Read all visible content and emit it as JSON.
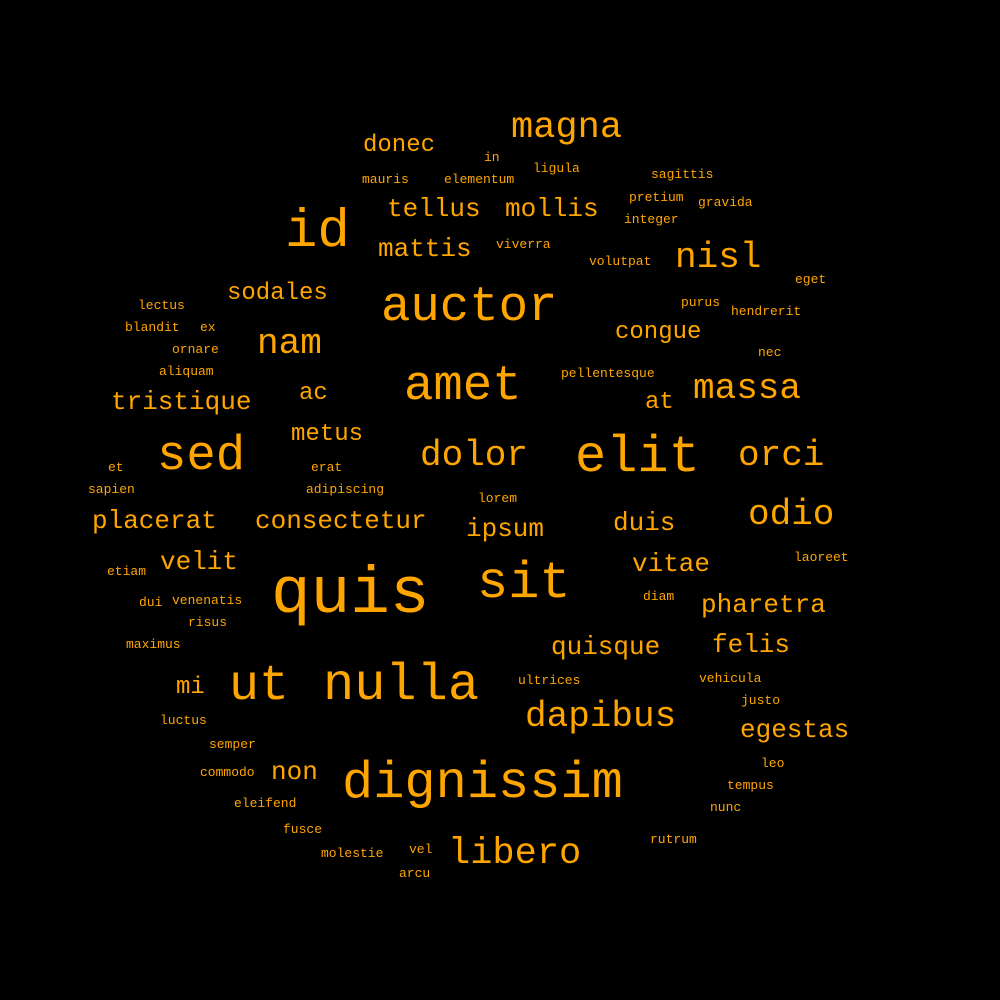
{
  "background": "#000000",
  "text_color": "#ffa500",
  "words": [
    {
      "text": "magna"
    },
    {
      "text": "donec"
    },
    {
      "text": "in"
    },
    {
      "text": "ligula"
    },
    {
      "text": "mauris"
    },
    {
      "text": "elementum"
    },
    {
      "text": "sagittis"
    },
    {
      "text": "pretium"
    },
    {
      "text": "gravida"
    },
    {
      "text": "tellus"
    },
    {
      "text": "mollis"
    },
    {
      "text": "integer"
    },
    {
      "text": "id"
    },
    {
      "text": "mattis"
    },
    {
      "text": "viverra"
    },
    {
      "text": "volutpat"
    },
    {
      "text": "nisl"
    },
    {
      "text": "eget"
    },
    {
      "text": "sodales"
    },
    {
      "text": "purus"
    },
    {
      "text": "lectus"
    },
    {
      "text": "auctor"
    },
    {
      "text": "hendrerit"
    },
    {
      "text": "blandit"
    },
    {
      "text": "ex"
    },
    {
      "text": "congue"
    },
    {
      "text": "nam"
    },
    {
      "text": "ornare"
    },
    {
      "text": "nec"
    },
    {
      "text": "aliquam"
    },
    {
      "text": "pellentesque"
    },
    {
      "text": "amet"
    },
    {
      "text": "massa"
    },
    {
      "text": "ac"
    },
    {
      "text": "tristique"
    },
    {
      "text": "at"
    },
    {
      "text": "metus"
    },
    {
      "text": "sed"
    },
    {
      "text": "dolor"
    },
    {
      "text": "elit"
    },
    {
      "text": "orci"
    },
    {
      "text": "et"
    },
    {
      "text": "erat"
    },
    {
      "text": "sapien"
    },
    {
      "text": "adipiscing"
    },
    {
      "text": "lorem"
    },
    {
      "text": "odio"
    },
    {
      "text": "placerat"
    },
    {
      "text": "consectetur"
    },
    {
      "text": "ipsum"
    },
    {
      "text": "duis"
    },
    {
      "text": "velit"
    },
    {
      "text": "laoreet"
    },
    {
      "text": "vitae"
    },
    {
      "text": "etiam"
    },
    {
      "text": "quis"
    },
    {
      "text": "sit"
    },
    {
      "text": "diam"
    },
    {
      "text": "dui"
    },
    {
      "text": "venenatis"
    },
    {
      "text": "pharetra"
    },
    {
      "text": "risus"
    },
    {
      "text": "felis"
    },
    {
      "text": "quisque"
    },
    {
      "text": "maximus"
    },
    {
      "text": "mi"
    },
    {
      "text": "ut"
    },
    {
      "text": "nulla"
    },
    {
      "text": "ultrices"
    },
    {
      "text": "vehicula"
    },
    {
      "text": "justo"
    },
    {
      "text": "dapibus"
    },
    {
      "text": "luctus"
    },
    {
      "text": "egestas"
    },
    {
      "text": "semper"
    },
    {
      "text": "commodo"
    },
    {
      "text": "non"
    },
    {
      "text": "dignissim"
    },
    {
      "text": "leo"
    },
    {
      "text": "tempus"
    },
    {
      "text": "eleifend"
    },
    {
      "text": "nunc"
    },
    {
      "text": "fusce"
    },
    {
      "text": "rutrum"
    },
    {
      "text": "molestie"
    },
    {
      "text": "vel"
    },
    {
      "text": "libero"
    },
    {
      "text": "arcu"
    }
  ]
}
